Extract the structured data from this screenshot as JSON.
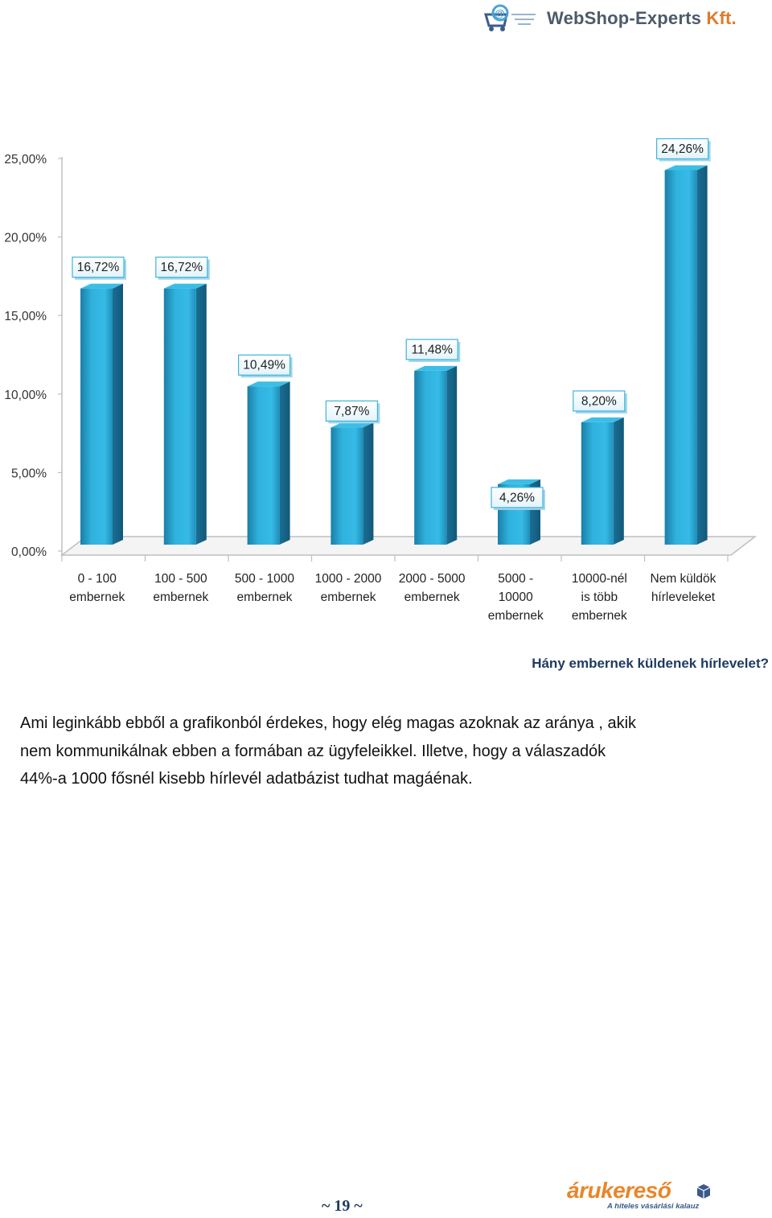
{
  "header": {
    "logo_text_main": "WebShop-Experts",
    "logo_text_suffix": " Kft.",
    "logo_icon": "shopping-cart-email-icon"
  },
  "chart_data": {
    "type": "bar",
    "title": "Hány embernek küldenek hírlevelet?",
    "xlabel": "",
    "ylabel": "",
    "ylim": [
      0,
      25
    ],
    "y_ticks": [
      "0,00%",
      "5,00%",
      "10,00%",
      "15,00%",
      "20,00%",
      "25,00%"
    ],
    "y_tick_values": [
      0,
      5,
      10,
      15,
      20,
      25
    ],
    "grid": false,
    "style": "3d-column",
    "bar_color": "#2aa6d3",
    "categories": [
      [
        "0 - 100",
        "embernek"
      ],
      [
        "100 - 500",
        "embernek"
      ],
      [
        "500 - 1000",
        "embernek"
      ],
      [
        "1000 - 2000",
        "embernek"
      ],
      [
        "2000 - 5000",
        "embernek"
      ],
      [
        "5000 -",
        "10000",
        "embernek"
      ],
      [
        "10000-nél",
        "is több",
        "embernek"
      ],
      [
        "Nem küldök",
        "hírleveleket"
      ]
    ],
    "values": [
      16.72,
      16.72,
      10.49,
      7.87,
      11.48,
      4.26,
      8.2,
      24.26
    ],
    "data_labels": [
      "16,72%",
      "16,72%",
      "10,49%",
      "7,87%",
      "11,48%",
      "4,26%",
      "8,20%",
      "24,26%"
    ]
  },
  "caption": "Hány embernek küldenek hírlevelet?",
  "paragraph": [
    "Ami leginkább ebből a grafikonból érdekes, hogy elég magas azoknak az aránya , akik",
    "nem kommunikálnak ebben a formában az ügyfeleikkel. Illetve, hogy a válaszadók",
    "44%-a 1000 fősnél kisebb hírlevél adatbázist tudhat magáénak."
  ],
  "footer": {
    "page_number": "~ 19 ~",
    "brand": "árukereső",
    "tagline": "A hiteles vásárlási kalauz"
  }
}
